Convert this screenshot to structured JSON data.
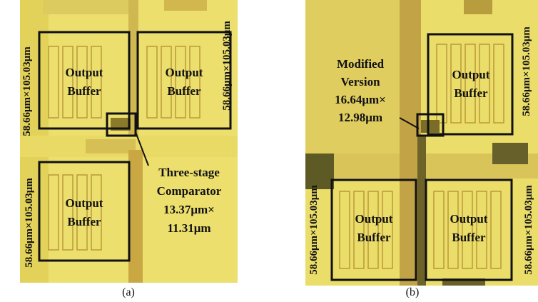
{
  "panels": [
    {
      "caption": "(a)",
      "buffers": [
        [
          "Output",
          "Buffer"
        ],
        [
          "Output",
          "Buffer"
        ],
        [
          "Output",
          "Buffer"
        ]
      ],
      "dimension_labels": [
        "58.66μm×105.03μm",
        "58.66μm×105.03μm",
        "58.66μm×105.03μm"
      ],
      "comparator_label": [
        "Three-stage",
        "Comparator",
        "13.37μm×",
        "11.31μm"
      ]
    },
    {
      "caption": "(b)",
      "buffers": [
        [
          "Output",
          "Buffer"
        ],
        [
          "Output",
          "Buffer"
        ],
        [
          "Output",
          "Buffer"
        ]
      ],
      "dimension_labels": [
        "58.66μm×105.03μm",
        "58.66μm×105.03μm",
        "58.66μm×105.03μm"
      ],
      "comparator_label": [
        "Modified",
        "Version",
        "16.64μm×",
        "12.98μm"
      ]
    }
  ]
}
